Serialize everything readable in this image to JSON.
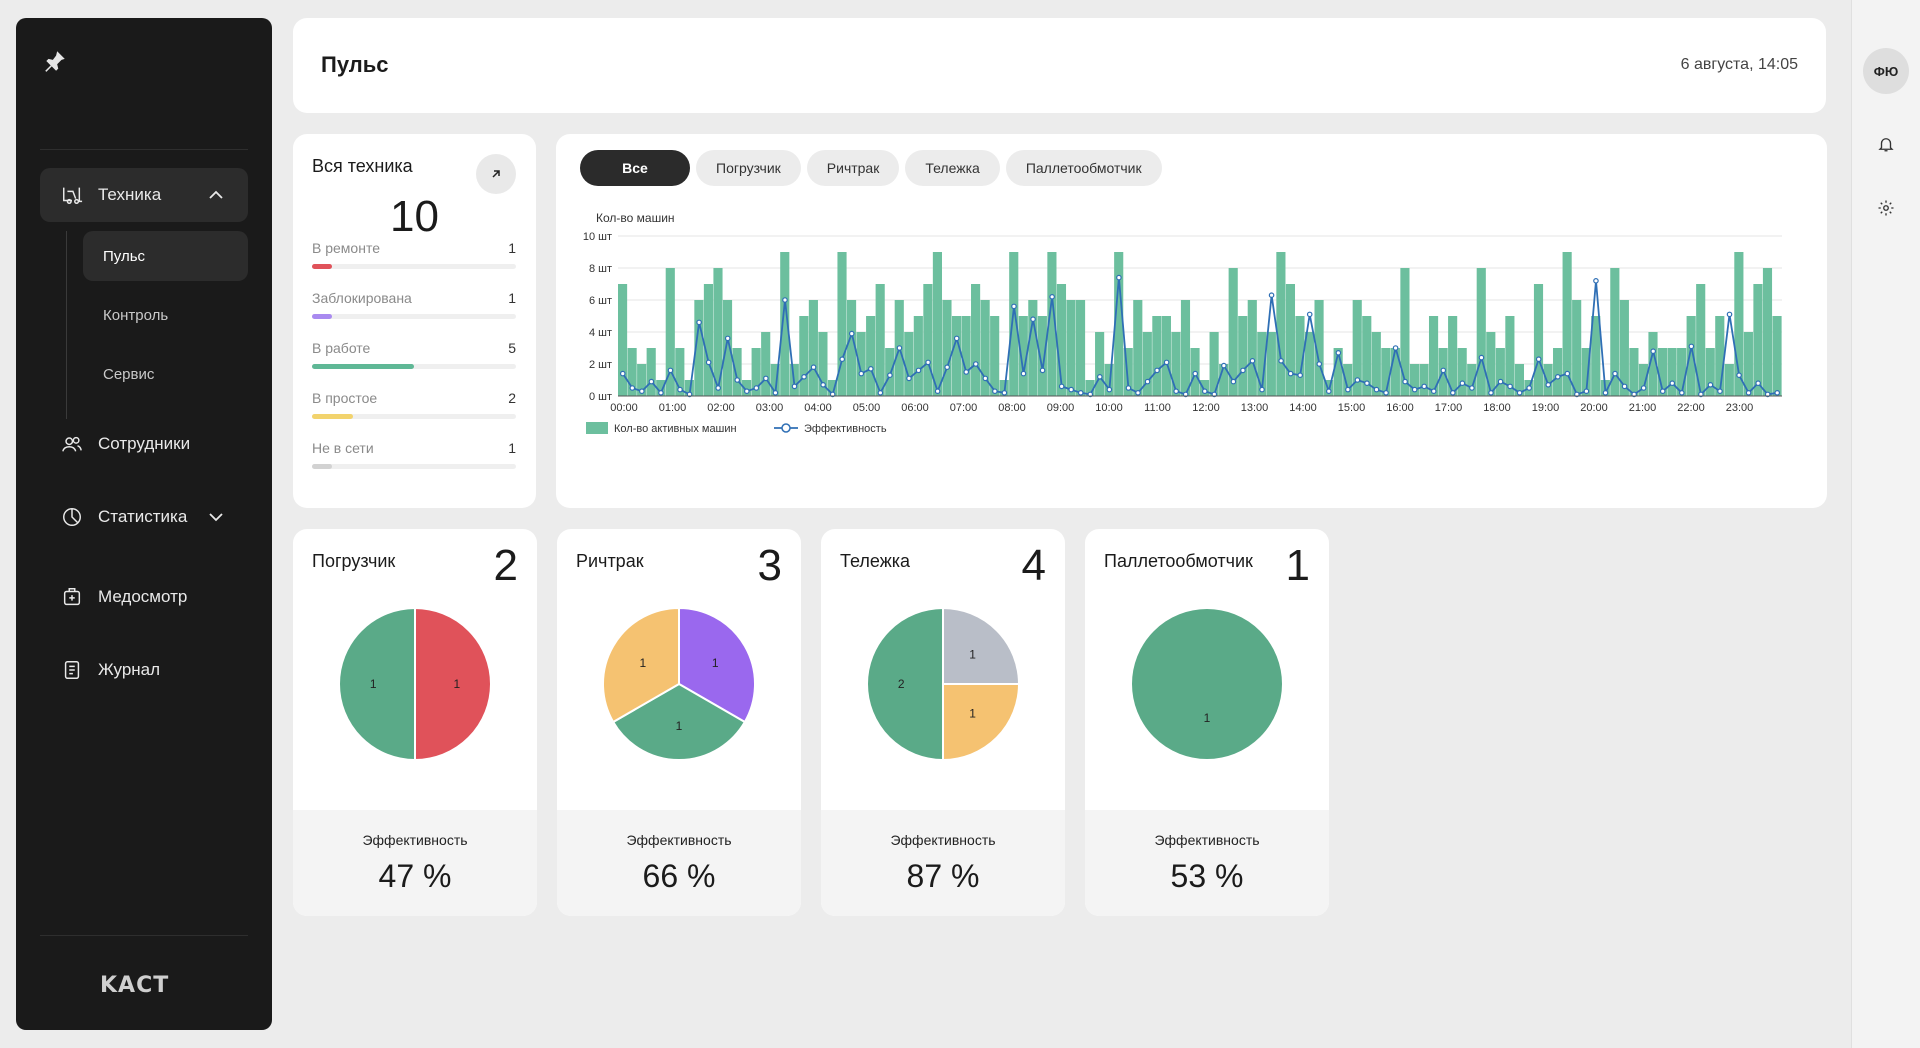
{
  "sidebar": {
    "items": [
      {
        "label": "Техника",
        "icon": "forklift-icon"
      },
      {
        "label": "Сотрудники",
        "icon": "users-icon"
      },
      {
        "label": "Статистика",
        "icon": "pie-chart-icon"
      },
      {
        "label": "Медосмотр",
        "icon": "medkit-icon"
      },
      {
        "label": "Журнал",
        "icon": "journal-icon"
      }
    ],
    "subitems": [
      {
        "label": "Пульс"
      },
      {
        "label": "Контроль"
      },
      {
        "label": "Сервис"
      }
    ],
    "logo": "KACT"
  },
  "header": {
    "title": "Пульс",
    "date": "6 августа, 14:05"
  },
  "user": {
    "initials": "ФЮ"
  },
  "summary": {
    "title": "Вся техника",
    "total": "10",
    "stats": [
      {
        "label": "В ремонте",
        "value": "1",
        "fraction": 0.1,
        "color": "#e0525a"
      },
      {
        "label": "Заблокирована",
        "value": "1",
        "fraction": 0.1,
        "color": "#a98af0"
      },
      {
        "label": "В работе",
        "value": "5",
        "fraction": 0.5,
        "color": "#5fb896"
      },
      {
        "label": "В простое",
        "value": "2",
        "fraction": 0.2,
        "color": "#f2d36d"
      },
      {
        "label": "Не в сети",
        "value": "1",
        "fraction": 0.1,
        "color": "#d2d2d2"
      }
    ]
  },
  "filters": [
    "Все",
    "Погрузчик",
    "Ричтрак",
    "Тележка",
    "Паллетообмотчик"
  ],
  "chart_data": {
    "type": "bar",
    "ylabel": "Кол-во машин",
    "y_ticks": [
      "0 шт",
      "2 шт",
      "4 шт",
      "6 шт",
      "8 шт",
      "10 шт"
    ],
    "ylim": [
      0,
      10
    ],
    "x_ticks": [
      "00:00",
      "01:00",
      "02:00",
      "03:00",
      "04:00",
      "05:00",
      "06:00",
      "07:00",
      "08:00",
      "09:00",
      "10:00",
      "11:00",
      "12:00",
      "13:00",
      "14:00",
      "15:00",
      "16:00",
      "17:00",
      "18:00",
      "19:00",
      "20:00",
      "21:00",
      "22:00",
      "23:00"
    ],
    "legend_position": "bottom-left",
    "series": [
      {
        "name": "Кол-во активных машин",
        "type": "bar",
        "color": "#6cbf9e",
        "values": [
          7,
          3,
          2,
          3,
          1,
          8,
          3,
          1,
          6,
          7,
          8,
          6,
          3,
          1,
          3,
          4,
          2,
          9,
          2,
          5,
          6,
          4,
          1,
          9,
          6,
          4,
          5,
          7,
          3,
          6,
          4,
          5,
          7,
          9,
          6,
          5,
          5,
          7,
          6,
          5,
          1,
          9,
          5,
          6,
          5,
          9,
          7,
          6,
          6,
          1,
          4,
          2,
          9,
          3,
          6,
          4,
          5,
          5,
          4,
          6,
          3,
          1,
          4,
          2,
          8,
          5,
          6,
          4,
          4,
          9,
          7,
          5,
          4,
          6,
          1,
          3,
          2,
          6,
          5,
          4,
          3,
          3,
          8,
          2,
          2,
          5,
          3,
          5,
          3,
          2,
          8,
          4,
          3,
          5,
          2,
          1,
          7,
          2,
          3,
          9,
          6,
          3,
          5,
          1,
          8,
          6,
          3,
          2,
          4,
          3,
          3,
          3,
          5,
          7,
          3,
          5,
          2,
          9,
          4,
          7,
          8,
          5
        ],
        "range": "00:00–23:59, 5-minute buckets"
      },
      {
        "name": "Эффективность",
        "type": "line",
        "color": "#2f6fb5",
        "values": [
          1.4,
          0.5,
          0.3,
          0.9,
          0.2,
          1.6,
          0.4,
          0.1,
          4.6,
          2.1,
          0.5,
          3.6,
          1.0,
          0.3,
          0.5,
          1.1,
          0.2,
          6.0,
          0.6,
          1.2,
          1.8,
          0.7,
          0.1,
          2.3,
          3.9,
          1.4,
          1.7,
          0.2,
          1.3,
          3.0,
          1.1,
          1.6,
          2.1,
          0.3,
          1.8,
          3.6,
          1.5,
          2.0,
          1.1,
          0.3,
          0.2,
          5.6,
          1.4,
          4.8,
          1.6,
          6.2,
          0.6,
          0.4,
          0.2,
          0.1,
          1.2,
          0.4,
          7.4,
          0.5,
          0.2,
          0.9,
          1.6,
          2.1,
          0.3,
          0.1,
          1.4,
          0.3,
          0.1,
          1.9,
          0.9,
          1.6,
          2.2,
          0.4,
          6.3,
          2.2,
          1.4,
          1.3,
          5.1,
          2.0,
          0.3,
          2.7,
          0.4,
          1.0,
          0.8,
          0.4,
          0.2,
          3.0,
          0.9,
          0.4,
          0.6,
          0.3,
          1.6,
          0.2,
          0.8,
          0.5,
          2.4,
          0.2,
          0.9,
          0.6,
          0.2,
          0.5,
          2.3,
          0.7,
          1.2,
          1.4,
          0.1,
          0.3,
          7.2,
          0.2,
          1.4,
          0.6,
          0.1,
          0.5,
          2.8,
          0.3,
          0.8,
          0.2,
          3.1,
          0.1,
          0.7,
          0.3,
          5.1,
          1.3,
          0.2,
          0.8,
          0.1,
          0.2
        ]
      }
    ]
  },
  "pie_cards": [
    {
      "name": "Погрузчик",
      "count": "2",
      "eff_label": "Эффективность",
      "eff_value": "47 %",
      "slices": [
        {
          "value": 1,
          "label": "1",
          "color": "#e0525a"
        },
        {
          "value": 1,
          "label": "1",
          "color": "#5aaa88"
        }
      ]
    },
    {
      "name": "Ричтрак",
      "count": "3",
      "eff_label": "Эффективность",
      "eff_value": "66 %",
      "slices": [
        {
          "value": 1,
          "label": "1",
          "color": "#9a68ee"
        },
        {
          "value": 1,
          "label": "1",
          "color": "#5aaa88"
        },
        {
          "value": 1,
          "label": "1",
          "color": "#f5c271"
        }
      ]
    },
    {
      "name": "Тележка",
      "count": "4",
      "eff_label": "Эффективность",
      "eff_value": "87 %",
      "slices": [
        {
          "value": 1,
          "label": "1",
          "color": "#b9bec8"
        },
        {
          "value": 1,
          "label": "1",
          "color": "#f5c271"
        },
        {
          "value": 2,
          "label": "2",
          "color": "#5aaa88"
        }
      ]
    },
    {
      "name": "Паллетообмотчик",
      "count": "1",
      "eff_label": "Эффективность",
      "eff_value": "53 %",
      "slices": [
        {
          "value": 1,
          "label": "1",
          "color": "#5aaa88"
        }
      ]
    }
  ]
}
